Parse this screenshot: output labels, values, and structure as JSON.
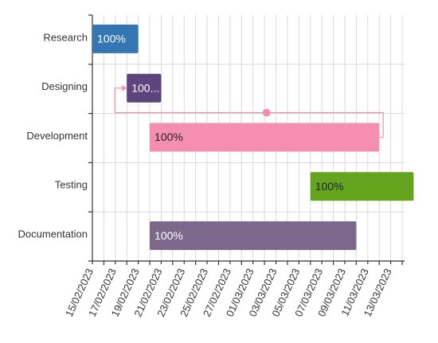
{
  "chart_data": {
    "type": "gantt",
    "title": "",
    "xlabel": "",
    "ylabel": "",
    "x_range": [
      "2023-02-15",
      "2023-03-14"
    ],
    "x_tick_step_days": 2,
    "x_ticks": [
      "15/02/2023",
      "17/02/2023",
      "19/02/2023",
      "21/02/2023",
      "23/02/2023",
      "25/02/2023",
      "27/02/2023",
      "01/03/2023",
      "03/03/2023",
      "05/03/2023",
      "07/03/2023",
      "09/03/2023",
      "11/03/2023",
      "13/03/2023"
    ],
    "grid": true,
    "tasks": [
      {
        "name": "Research",
        "start": "2023-02-15",
        "end": "2023-02-19",
        "progress_label": "100%",
        "color": "#3475b4",
        "label_color": "#ffffff"
      },
      {
        "name": "Designing",
        "start": "2023-02-18",
        "end": "2023-02-21",
        "progress_label": "100...",
        "color": "#5e437f",
        "label_color": "#ffffff"
      },
      {
        "name": "Development",
        "start": "2023-02-20",
        "end": "2023-03-12",
        "progress_label": "100%",
        "color": "#f48fb1",
        "label_color": "#222222"
      },
      {
        "name": "Testing",
        "start": "2023-03-06",
        "end": "2023-03-15",
        "progress_label": "100%",
        "color": "#65a41e",
        "label_color": "#222222"
      },
      {
        "name": "Documentation",
        "start": "2023-02-20",
        "end": "2023-03-10",
        "progress_label": "100%",
        "color": "#7b688b",
        "label_color": "#ffffff"
      }
    ],
    "dependencies": [
      {
        "from": "Development",
        "to": "Designing",
        "color": "#f48fb1"
      }
    ]
  }
}
